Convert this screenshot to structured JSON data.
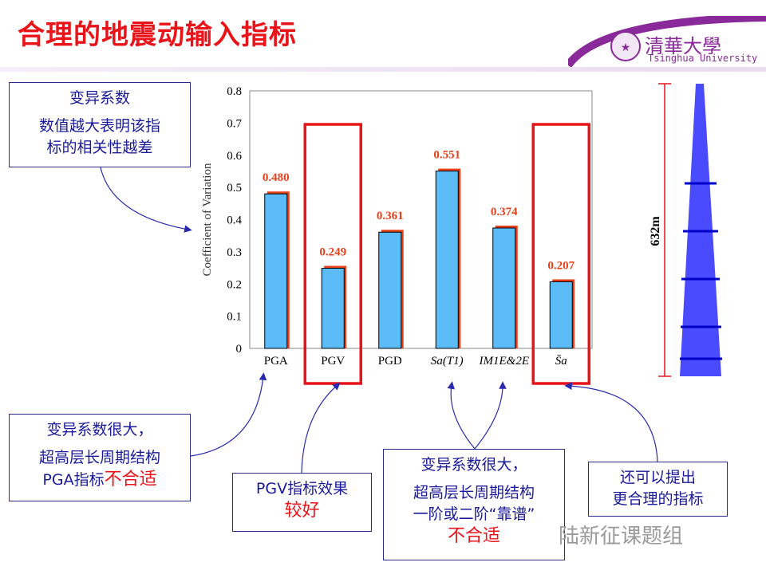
{
  "title": "合理的地震动输入指标",
  "logo": {
    "cn": "清華大學",
    "en": "Tsinghua University"
  },
  "chart_data": {
    "type": "bar",
    "categories": [
      "PGA",
      "PGV",
      "PGD",
      "Sa(T1)",
      "IM1E&2E",
      "S̄a"
    ],
    "values": [
      0.48,
      0.249,
      0.361,
      0.551,
      0.374,
      0.207
    ],
    "value_labels": [
      "0.480",
      "0.249",
      "0.361",
      "0.551",
      "0.374",
      "0.207"
    ],
    "ylabel": "Coefficient of Variation",
    "ylim": [
      0,
      0.8
    ],
    "yticks": [
      "0",
      "0.1",
      "0.2",
      "0.3",
      "0.4",
      "0.5",
      "0.6",
      "0.7",
      "0.8"
    ],
    "highlighted": [
      "PGV",
      "S̄a"
    ],
    "bar_color": "#5bbcf8",
    "label_color": "#e8401a",
    "highlight_color": "#e8141a"
  },
  "tower": {
    "height_label": "632m"
  },
  "callouts": {
    "cov": {
      "line1": "变异系数",
      "line2": "数值越大表明该指",
      "line3": "标的相关性越差"
    },
    "pga": {
      "line1": "变异系数很大，",
      "line2": "超高层长周期结构",
      "line3": "PGA指标",
      "red": "不合适"
    },
    "pgv": {
      "line1": "PGV指标效果",
      "red": "较好"
    },
    "sa": {
      "line1": "变异系数很大，",
      "line2": "超高层长周期结构",
      "line3": "一阶或二阶“靠谱”",
      "red": "不合适"
    },
    "sabar": {
      "line1": "还可以提出",
      "line2": "更合理的指标"
    }
  },
  "watermark": "陆新征课题组"
}
